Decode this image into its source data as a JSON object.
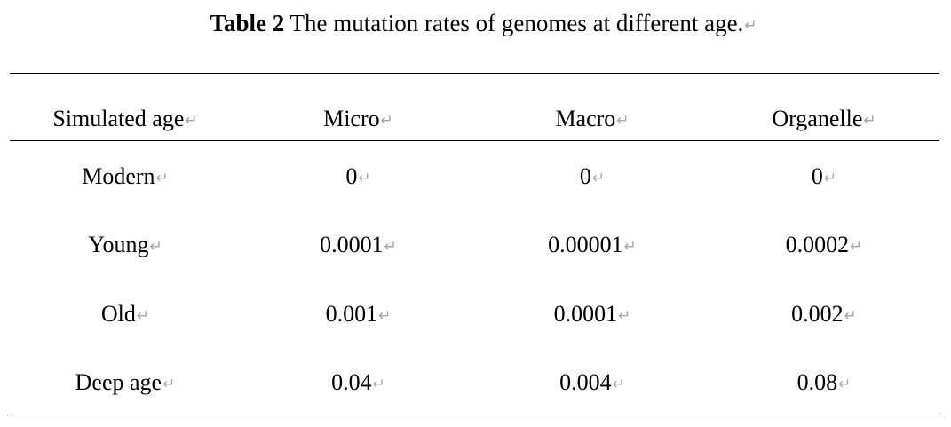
{
  "caption": {
    "label": "Table 2",
    "text": "The mutation rates of genomes at different age."
  },
  "paragraph_mark": "↵",
  "table": {
    "headers": [
      "Simulated age",
      "Micro",
      "Macro",
      "Organelle"
    ],
    "rows": [
      [
        "Modern",
        "0",
        "0",
        "0"
      ],
      [
        "Young",
        "0.0001",
        "0.00001",
        "0.0002"
      ],
      [
        "Old",
        "0.001",
        "0.0001",
        "0.002"
      ],
      [
        "Deep age",
        "0.04",
        "0.004",
        "0.08"
      ]
    ]
  },
  "colors": {
    "text": "#000000",
    "paragraph_mark": "#a6a6a6",
    "rule": "#000000",
    "background": "#ffffff"
  }
}
